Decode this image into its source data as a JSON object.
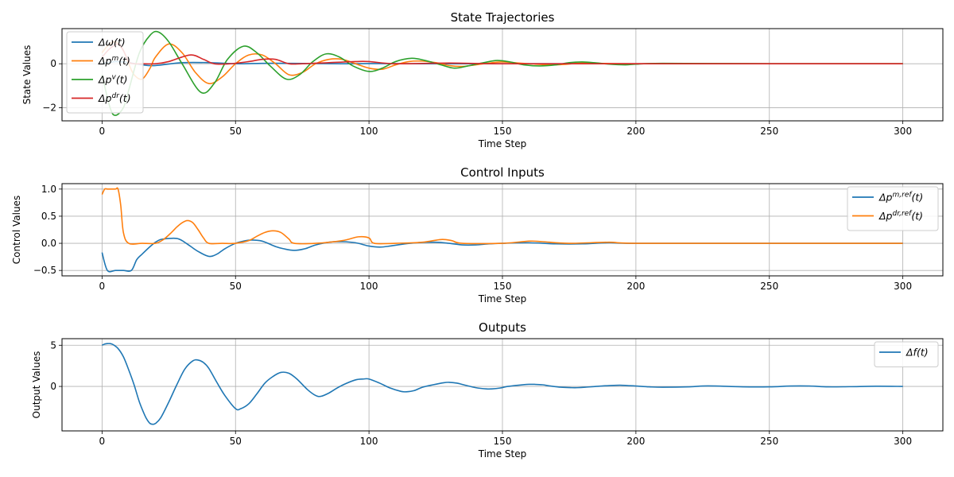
{
  "chart_data": [
    {
      "type": "line",
      "title": "State Trajectories",
      "xlabel": "Time Step",
      "ylabel": "State Values",
      "xlim": [
        -15,
        315
      ],
      "ylim": [
        -2.6,
        1.6
      ],
      "xticks": [
        0,
        50,
        100,
        150,
        200,
        250,
        300
      ],
      "yticks": [
        -2,
        0
      ],
      "grid": true,
      "legend_position": "top-left",
      "series": [
        {
          "name": "Δω(t)",
          "color": "#1f77b4",
          "x": [
            0,
            5,
            10,
            15,
            20,
            30,
            40,
            50,
            60,
            70,
            80,
            90,
            100,
            120,
            150,
            200,
            250,
            300
          ],
          "y": [
            0,
            0.1,
            0.05,
            -0.05,
            -0.08,
            0.05,
            0.05,
            0,
            0.02,
            0.02,
            0.01,
            0,
            0.01,
            0,
            0,
            0,
            0,
            0
          ]
        },
        {
          "name": "Δp^m(t)",
          "color": "#ff7f0e",
          "x": [
            0,
            2,
            5,
            8,
            10,
            12,
            15,
            18,
            20,
            25,
            30,
            35,
            40,
            45,
            50,
            55,
            60,
            65,
            70,
            75,
            80,
            85,
            90,
            95,
            100,
            105,
            110,
            115,
            120,
            125,
            130,
            135,
            140,
            145,
            150,
            160,
            170,
            180,
            190,
            200,
            220,
            250,
            300
          ],
          "y": [
            0.5,
            0.8,
            1.0,
            0.6,
            0,
            -0.5,
            -0.7,
            -0.2,
            0.3,
            0.9,
            0.5,
            -0.4,
            -0.9,
            -0.6,
            0,
            0.4,
            0.4,
            0,
            -0.5,
            -0.4,
            0,
            0.2,
            0.2,
            0,
            -0.2,
            -0.25,
            -0.05,
            0.1,
            0.12,
            0.05,
            -0.08,
            -0.12,
            -0.05,
            0.03,
            0.08,
            0,
            -0.05,
            0.03,
            0.01,
            0,
            0,
            0,
            0
          ]
        },
        {
          "name": "Δp^v(t)",
          "color": "#2ca02c",
          "x": [
            0,
            3,
            5,
            8,
            10,
            14,
            18,
            21,
            25,
            30,
            37,
            42,
            47,
            53,
            58,
            63,
            69,
            74,
            79,
            84,
            89,
            94,
            100,
            105,
            110,
            116,
            121,
            127,
            132,
            137,
            143,
            148,
            153,
            158,
            164,
            170,
            175,
            180,
            185,
            190,
            196,
            200,
            210,
            250,
            300
          ],
          "y": [
            -0.5,
            -2.0,
            -2.35,
            -2.0,
            -1.2,
            0.5,
            1.3,
            1.45,
            1.0,
            0,
            -1.3,
            -0.9,
            0.2,
            0.8,
            0.5,
            -0.1,
            -0.7,
            -0.5,
            0.1,
            0.45,
            0.3,
            -0.1,
            -0.35,
            -0.2,
            0.1,
            0.25,
            0.15,
            -0.05,
            -0.2,
            -0.1,
            0.05,
            0.15,
            0.08,
            -0.05,
            -0.1,
            -0.05,
            0.05,
            0.08,
            0.04,
            -0.02,
            -0.05,
            -0.02,
            0.02,
            0,
            0
          ]
        },
        {
          "name": "Δp^dr(t)",
          "color": "#d62728",
          "x": [
            0,
            3,
            6,
            8,
            10,
            12,
            15,
            20,
            25,
            33,
            38,
            42,
            48,
            55,
            60,
            65,
            70,
            75,
            85,
            95,
            100,
            110,
            130,
            150,
            200,
            250,
            300
          ],
          "y": [
            0.3,
            0.7,
            0.9,
            0.6,
            0.1,
            0,
            0,
            0,
            0.1,
            0.4,
            0.2,
            0,
            0,
            0.1,
            0.2,
            0.2,
            0,
            0,
            0.05,
            0.1,
            0.1,
            0,
            0.03,
            0,
            0,
            0,
            0
          ]
        }
      ]
    },
    {
      "type": "line",
      "title": "Control Inputs",
      "xlabel": "Time Step",
      "ylabel": "Control Values",
      "xlim": [
        -15,
        315
      ],
      "ylim": [
        -0.6,
        1.1
      ],
      "xticks": [
        0,
        50,
        100,
        150,
        200,
        250,
        300
      ],
      "yticks": [
        -0.5,
        0.0,
        0.5,
        1.0
      ],
      "ytick_labels": [
        "−0.5",
        "0.0",
        "0.5",
        "1.0"
      ],
      "grid": true,
      "legend_position": "top-right",
      "series": [
        {
          "name": "Δp^m,ref(t)",
          "color": "#1f77b4",
          "x": [
            0,
            2,
            5,
            8,
            11,
            13,
            15,
            18,
            20,
            22,
            25,
            28,
            30,
            33,
            36,
            40,
            43,
            46,
            50,
            53,
            56,
            60,
            65,
            68,
            72,
            76,
            80,
            85,
            90,
            95,
            100,
            104,
            108,
            112,
            118,
            125,
            130,
            135,
            140,
            145,
            150,
            160,
            170,
            180,
            190,
            200,
            250,
            300
          ],
          "y": [
            -0.17,
            -0.5,
            -0.5,
            -0.5,
            -0.5,
            -0.3,
            -0.2,
            -0.06,
            0.02,
            0.07,
            0.09,
            0.09,
            0.05,
            -0.05,
            -0.15,
            -0.24,
            -0.2,
            -0.1,
            0,
            0.04,
            0.06,
            0.04,
            -0.06,
            -0.1,
            -0.13,
            -0.1,
            -0.03,
            0.02,
            0.03,
            0.01,
            -0.05,
            -0.07,
            -0.05,
            -0.02,
            0.01,
            0.02,
            0,
            -0.03,
            -0.03,
            -0.01,
            0,
            0.01,
            -0.01,
            -0.01,
            0.01,
            0,
            0,
            0
          ]
        },
        {
          "name": "Δp^dr,ref(t)",
          "color": "#ff7f0e",
          "x": [
            0,
            1,
            2,
            3,
            5,
            6,
            7,
            8,
            10,
            15,
            20,
            23,
            26,
            28,
            30,
            32,
            34,
            36,
            38,
            40,
            45,
            50,
            55,
            58,
            61,
            64,
            67,
            70,
            72,
            80,
            90,
            96,
            100,
            102,
            110,
            120,
            127,
            131,
            135,
            150,
            160,
            165,
            175,
            190,
            200,
            250,
            300
          ],
          "y": [
            0.9,
            1.0,
            1.0,
            1.0,
            1.0,
            1.0,
            0.7,
            0.2,
            0,
            0,
            0,
            0.07,
            0.2,
            0.3,
            0.38,
            0.42,
            0.38,
            0.25,
            0.1,
            0,
            0,
            0,
            0.05,
            0.13,
            0.2,
            0.23,
            0.2,
            0.08,
            0,
            0,
            0.05,
            0.12,
            0.1,
            0,
            0,
            0.02,
            0.07,
            0.05,
            0,
            0,
            0.04,
            0.03,
            0,
            0.02,
            0,
            0,
            0
          ]
        }
      ]
    },
    {
      "type": "line",
      "title": "Outputs",
      "xlabel": "Time Step",
      "ylabel": "Output Values",
      "xlim": [
        -15,
        315
      ],
      "ylim": [
        -5.4,
        5.8
      ],
      "xticks": [
        0,
        50,
        100,
        150,
        200,
        250,
        300
      ],
      "yticks": [
        0,
        5
      ],
      "grid": true,
      "legend_position": "top-right",
      "series": [
        {
          "name": "Δf(t)",
          "color": "#1f77b4",
          "x": [
            0,
            1,
            2,
            3,
            4,
            6,
            8,
            10,
            12,
            14,
            16,
            17,
            18,
            19,
            20,
            22,
            25,
            28,
            31,
            34,
            36,
            38,
            40,
            43,
            46,
            50,
            52,
            55,
            58,
            61,
            64,
            67,
            70,
            73,
            77,
            80,
            82,
            85,
            88,
            91,
            95,
            98,
            100,
            104,
            108,
            112,
            114,
            117,
            120,
            124,
            128,
            130,
            133,
            136,
            140,
            144,
            146,
            149,
            152,
            156,
            160,
            162,
            165,
            168,
            172,
            176,
            178,
            181,
            185,
            190,
            194,
            197,
            200,
            205,
            210,
            220,
            225,
            230,
            240,
            250,
            258,
            265,
            272,
            280,
            290,
            300
          ],
          "y": [
            5.0,
            5.15,
            5.2,
            5.2,
            5.1,
            4.6,
            3.6,
            2.0,
            0.2,
            -1.9,
            -3.5,
            -4.1,
            -4.5,
            -4.6,
            -4.5,
            -3.8,
            -1.9,
            0.2,
            2.1,
            3.1,
            3.2,
            2.9,
            2.2,
            0.5,
            -1.1,
            -2.7,
            -2.7,
            -2.1,
            -0.9,
            0.4,
            1.2,
            1.7,
            1.6,
            0.9,
            -0.4,
            -1.1,
            -1.2,
            -0.8,
            -0.2,
            0.3,
            0.8,
            0.9,
            0.9,
            0.4,
            -0.2,
            -0.6,
            -0.65,
            -0.5,
            -0.1,
            0.2,
            0.45,
            0.5,
            0.4,
            0.15,
            -0.15,
            -0.3,
            -0.3,
            -0.2,
            0,
            0.15,
            0.25,
            0.25,
            0.2,
            0.05,
            -0.1,
            -0.15,
            -0.15,
            -0.1,
            0,
            0.1,
            0.15,
            0.1,
            0.05,
            -0.05,
            -0.1,
            -0.05,
            0.05,
            0.05,
            -0.05,
            -0.05,
            0.05,
            0.05,
            -0.05,
            -0.03,
            0.02,
            0
          ]
        }
      ]
    }
  ]
}
